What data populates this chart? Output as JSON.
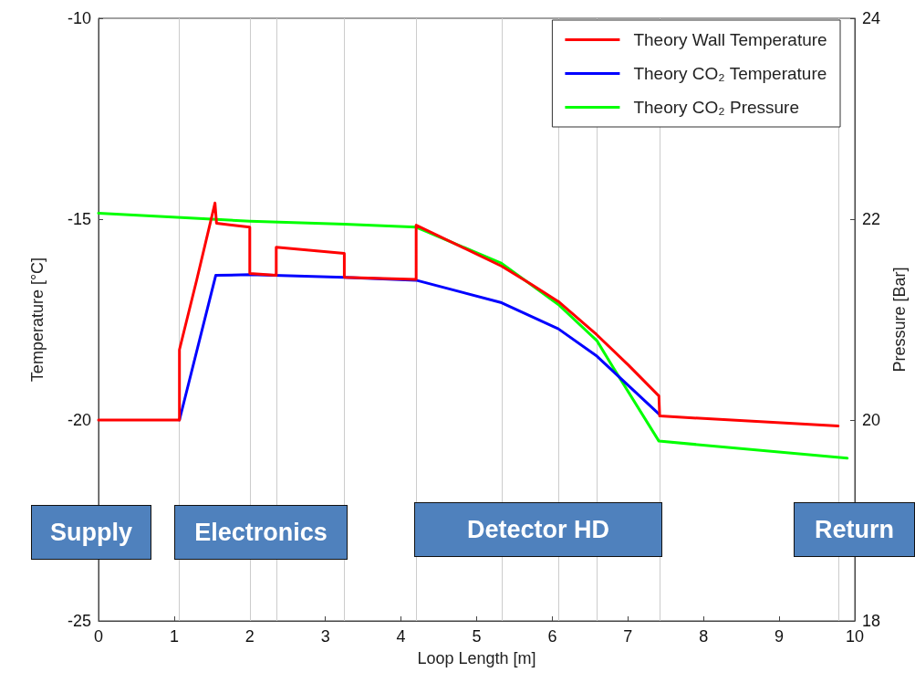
{
  "chart_data": {
    "type": "line",
    "xlabel": "Loop Length [m]",
    "ylabel": "Temperature [°C]",
    "y2label": "Pressure [Bar]",
    "xlim": [
      0,
      10
    ],
    "xticks": [
      0,
      1,
      2,
      3,
      4,
      5,
      6,
      7,
      8,
      9,
      10
    ],
    "ylim": [
      -25,
      -10
    ],
    "yticks": [
      -25,
      -20,
      -15,
      -10
    ],
    "y2lim": [
      18,
      24
    ],
    "y2ticks": [
      18,
      20,
      22,
      24
    ],
    "grid": false,
    "legend": "top right",
    "marker": "none",
    "line_style": "solid",
    "series": [
      {
        "name": "Theory Wall Temperature",
        "color": "#ff0000",
        "x": [
          0,
          1.07,
          1.07,
          1.3,
          1.54,
          1.56,
          2.0,
          2.0,
          2.35,
          2.35,
          3.25,
          3.25,
          4.2,
          4.2,
          5.33,
          5.73,
          6.08,
          6.59,
          7.01,
          7.41,
          7.42,
          9.78
        ],
        "values": [
          -20,
          -20,
          -18.25,
          -16.5,
          -14.6,
          -15.1,
          -15.2,
          -16.35,
          -16.4,
          -15.7,
          -15.85,
          -16.45,
          -16.5,
          -15.15,
          -16.17,
          -16.63,
          -17.05,
          -17.88,
          -18.64,
          -19.4,
          -19.9,
          -20.15
        ]
      },
      {
        "name": "Theory CO₂ Temperature",
        "color": "#0000ff",
        "x": [
          1.07,
          1.55,
          2.0,
          3.25,
          4.2,
          5.33,
          6.08,
          6.59,
          7.41
        ],
        "values": [
          -20,
          -16.4,
          -16.38,
          -16.45,
          -16.52,
          -17.08,
          -17.73,
          -18.41,
          -19.85
        ]
      },
      {
        "name": "Theory CO₂ Pressure",
        "color": "#00ff00",
        "axis": "y2",
        "x": [
          0,
          1.5,
          2.0,
          3.25,
          4.2,
          5.33,
          6.08,
          6.59,
          6.8,
          7.41,
          9.9
        ],
        "values": [
          22.06,
          22.0,
          21.98,
          21.95,
          21.92,
          21.56,
          21.15,
          20.79,
          20.53,
          19.79,
          19.62
        ]
      }
    ],
    "ref_lines": [
      {
        "axis": "x",
        "value": 1.07,
        "color": "#cccccc"
      },
      {
        "axis": "x",
        "value": 2.0,
        "color": "#cccccc"
      },
      {
        "axis": "x",
        "value": 2.35,
        "color": "#cccccc"
      },
      {
        "axis": "x",
        "value": 3.25,
        "color": "#cccccc"
      },
      {
        "axis": "x",
        "value": 4.2,
        "color": "#cccccc"
      },
      {
        "axis": "x",
        "value": 5.34,
        "color": "#cccccc"
      },
      {
        "axis": "x",
        "value": 6.08,
        "color": "#cccccc"
      },
      {
        "axis": "x",
        "value": 6.59,
        "color": "#cccccc"
      },
      {
        "axis": "x",
        "value": 7.42,
        "color": "#cccccc"
      },
      {
        "axis": "x",
        "value": 9.78,
        "color": "#cccccc"
      }
    ],
    "annotations": [
      "Supply",
      "Electronics",
      "Detector HD",
      "Return"
    ]
  }
}
